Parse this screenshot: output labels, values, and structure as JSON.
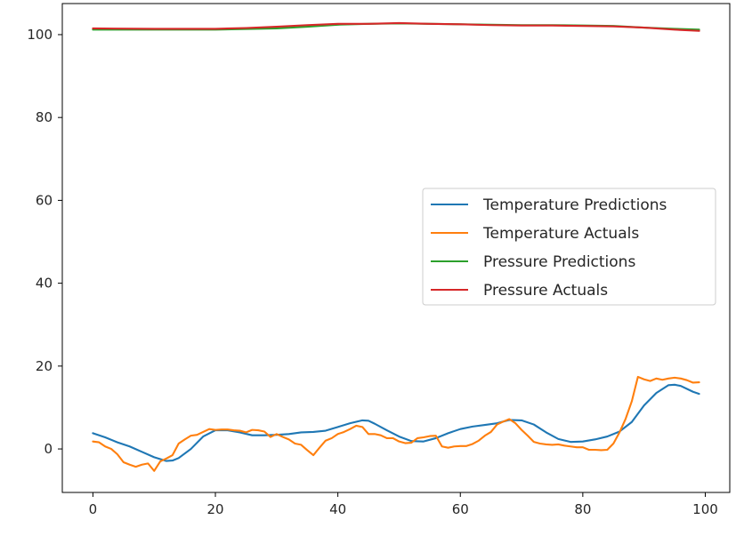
{
  "chart_data": {
    "type": "line",
    "title": "",
    "xlabel": "",
    "ylabel": "",
    "xlim": [
      -5,
      104
    ],
    "ylim": [
      -10.5,
      107.5
    ],
    "x_ticks": [
      0,
      20,
      40,
      60,
      80,
      100
    ],
    "y_ticks": [
      0,
      20,
      40,
      60,
      80,
      100
    ],
    "grid": false,
    "legend_position": "center-right",
    "series": [
      {
        "name": "Temperature Predictions",
        "color": "#1f77b4",
        "points": [
          [
            0,
            3.8
          ],
          [
            2,
            2.8
          ],
          [
            4,
            1.6
          ],
          [
            6,
            0.6
          ],
          [
            8,
            -0.7
          ],
          [
            10,
            -2.0
          ],
          [
            12,
            -2.9
          ],
          [
            13,
            -2.8
          ],
          [
            14,
            -2.2
          ],
          [
            16,
            0.0
          ],
          [
            18,
            3.0
          ],
          [
            20,
            4.5
          ],
          [
            22,
            4.5
          ],
          [
            24,
            4.0
          ],
          [
            26,
            3.3
          ],
          [
            28,
            3.3
          ],
          [
            30,
            3.4
          ],
          [
            32,
            3.6
          ],
          [
            34,
            4.0
          ],
          [
            36,
            4.1
          ],
          [
            38,
            4.4
          ],
          [
            40,
            5.3
          ],
          [
            42,
            6.2
          ],
          [
            44,
            6.9
          ],
          [
            45,
            6.8
          ],
          [
            46,
            6.1
          ],
          [
            48,
            4.5
          ],
          [
            50,
            3.0
          ],
          [
            52,
            1.9
          ],
          [
            54,
            1.8
          ],
          [
            56,
            2.6
          ],
          [
            58,
            3.8
          ],
          [
            60,
            4.8
          ],
          [
            62,
            5.4
          ],
          [
            64,
            5.8
          ],
          [
            66,
            6.2
          ],
          [
            68,
            7.0
          ],
          [
            70,
            6.9
          ],
          [
            72,
            5.9
          ],
          [
            74,
            4.0
          ],
          [
            76,
            2.4
          ],
          [
            78,
            1.7
          ],
          [
            80,
            1.8
          ],
          [
            82,
            2.3
          ],
          [
            84,
            3.0
          ],
          [
            86,
            4.2
          ],
          [
            88,
            6.5
          ],
          [
            90,
            10.5
          ],
          [
            92,
            13.5
          ],
          [
            94,
            15.4
          ],
          [
            95,
            15.5
          ],
          [
            96,
            15.2
          ],
          [
            98,
            13.8
          ],
          [
            99,
            13.3
          ]
        ]
      },
      {
        "name": "Temperature Actuals",
        "color": "#ff7f0e",
        "points": [
          [
            0,
            1.8
          ],
          [
            1,
            1.6
          ],
          [
            2,
            0.6
          ],
          [
            3,
            0.0
          ],
          [
            4,
            -1.3
          ],
          [
            5,
            -3.2
          ],
          [
            6,
            -3.8
          ],
          [
            7,
            -4.3
          ],
          [
            8,
            -3.8
          ],
          [
            9,
            -3.5
          ],
          [
            10,
            -5.3
          ],
          [
            11,
            -3.0
          ],
          [
            12,
            -2.3
          ],
          [
            13,
            -1.5
          ],
          [
            14,
            1.3
          ],
          [
            15,
            2.3
          ],
          [
            16,
            3.2
          ],
          [
            17,
            3.4
          ],
          [
            18,
            4.1
          ],
          [
            19,
            4.8
          ],
          [
            20,
            4.6
          ],
          [
            21,
            4.7
          ],
          [
            22,
            4.7
          ],
          [
            23,
            4.5
          ],
          [
            24,
            4.4
          ],
          [
            25,
            4.0
          ],
          [
            26,
            4.6
          ],
          [
            27,
            4.5
          ],
          [
            28,
            4.2
          ],
          [
            29,
            2.9
          ],
          [
            30,
            3.6
          ],
          [
            31,
            2.9
          ],
          [
            32,
            2.3
          ],
          [
            33,
            1.3
          ],
          [
            34,
            1.0
          ],
          [
            35,
            -0.3
          ],
          [
            36,
            -1.5
          ],
          [
            37,
            0.3
          ],
          [
            38,
            2.0
          ],
          [
            39,
            2.6
          ],
          [
            40,
            3.6
          ],
          [
            41,
            4.1
          ],
          [
            42,
            4.8
          ],
          [
            43,
            5.6
          ],
          [
            44,
            5.3
          ],
          [
            45,
            3.6
          ],
          [
            46,
            3.6
          ],
          [
            47,
            3.3
          ],
          [
            48,
            2.6
          ],
          [
            49,
            2.6
          ],
          [
            50,
            1.8
          ],
          [
            51,
            1.4
          ],
          [
            52,
            1.5
          ],
          [
            53,
            2.6
          ],
          [
            54,
            2.8
          ],
          [
            55,
            3.1
          ],
          [
            56,
            3.2
          ],
          [
            57,
            0.6
          ],
          [
            58,
            0.3
          ],
          [
            59,
            0.6
          ],
          [
            60,
            0.7
          ],
          [
            61,
            0.7
          ],
          [
            62,
            1.2
          ],
          [
            63,
            2.0
          ],
          [
            64,
            3.2
          ],
          [
            65,
            4.1
          ],
          [
            66,
            5.9
          ],
          [
            67,
            6.6
          ],
          [
            68,
            7.2
          ],
          [
            69,
            6.2
          ],
          [
            70,
            4.6
          ],
          [
            71,
            3.2
          ],
          [
            72,
            1.7
          ],
          [
            73,
            1.3
          ],
          [
            74,
            1.1
          ],
          [
            75,
            1.0
          ],
          [
            76,
            1.1
          ],
          [
            77,
            0.8
          ],
          [
            78,
            0.6
          ],
          [
            79,
            0.4
          ],
          [
            80,
            0.4
          ],
          [
            81,
            -0.2
          ],
          [
            82,
            -0.2
          ],
          [
            83,
            -0.3
          ],
          [
            84,
            -0.2
          ],
          [
            85,
            1.3
          ],
          [
            86,
            4.0
          ],
          [
            87,
            7.3
          ],
          [
            88,
            11.5
          ],
          [
            89,
            17.4
          ],
          [
            90,
            16.8
          ],
          [
            91,
            16.4
          ],
          [
            92,
            17.0
          ],
          [
            93,
            16.7
          ],
          [
            94,
            17.0
          ],
          [
            95,
            17.2
          ],
          [
            96,
            17.0
          ],
          [
            97,
            16.6
          ],
          [
            98,
            16.0
          ],
          [
            99,
            16.1
          ]
        ]
      },
      {
        "name": "Pressure Predictions",
        "color": "#2ca02c",
        "points": [
          [
            0,
            101.2
          ],
          [
            10,
            101.2
          ],
          [
            20,
            101.2
          ],
          [
            30,
            101.5
          ],
          [
            35,
            101.9
          ],
          [
            40,
            102.4
          ],
          [
            45,
            102.6
          ],
          [
            50,
            102.7
          ],
          [
            55,
            102.6
          ],
          [
            60,
            102.5
          ],
          [
            65,
            102.4
          ],
          [
            70,
            102.3
          ],
          [
            75,
            102.3
          ],
          [
            80,
            102.2
          ],
          [
            85,
            102.1
          ],
          [
            90,
            101.7
          ],
          [
            95,
            101.4
          ],
          [
            99,
            101.2
          ]
        ]
      },
      {
        "name": "Pressure Actuals",
        "color": "#d62728",
        "points": [
          [
            0,
            101.5
          ],
          [
            10,
            101.4
          ],
          [
            20,
            101.4
          ],
          [
            25,
            101.6
          ],
          [
            30,
            101.9
          ],
          [
            35,
            102.3
          ],
          [
            40,
            102.6
          ],
          [
            45,
            102.6
          ],
          [
            50,
            102.8
          ],
          [
            55,
            102.6
          ],
          [
            60,
            102.5
          ],
          [
            65,
            102.3
          ],
          [
            70,
            102.2
          ],
          [
            75,
            102.2
          ],
          [
            80,
            102.1
          ],
          [
            85,
            102.0
          ],
          [
            90,
            101.7
          ],
          [
            95,
            101.2
          ],
          [
            99,
            100.9
          ]
        ]
      }
    ]
  }
}
